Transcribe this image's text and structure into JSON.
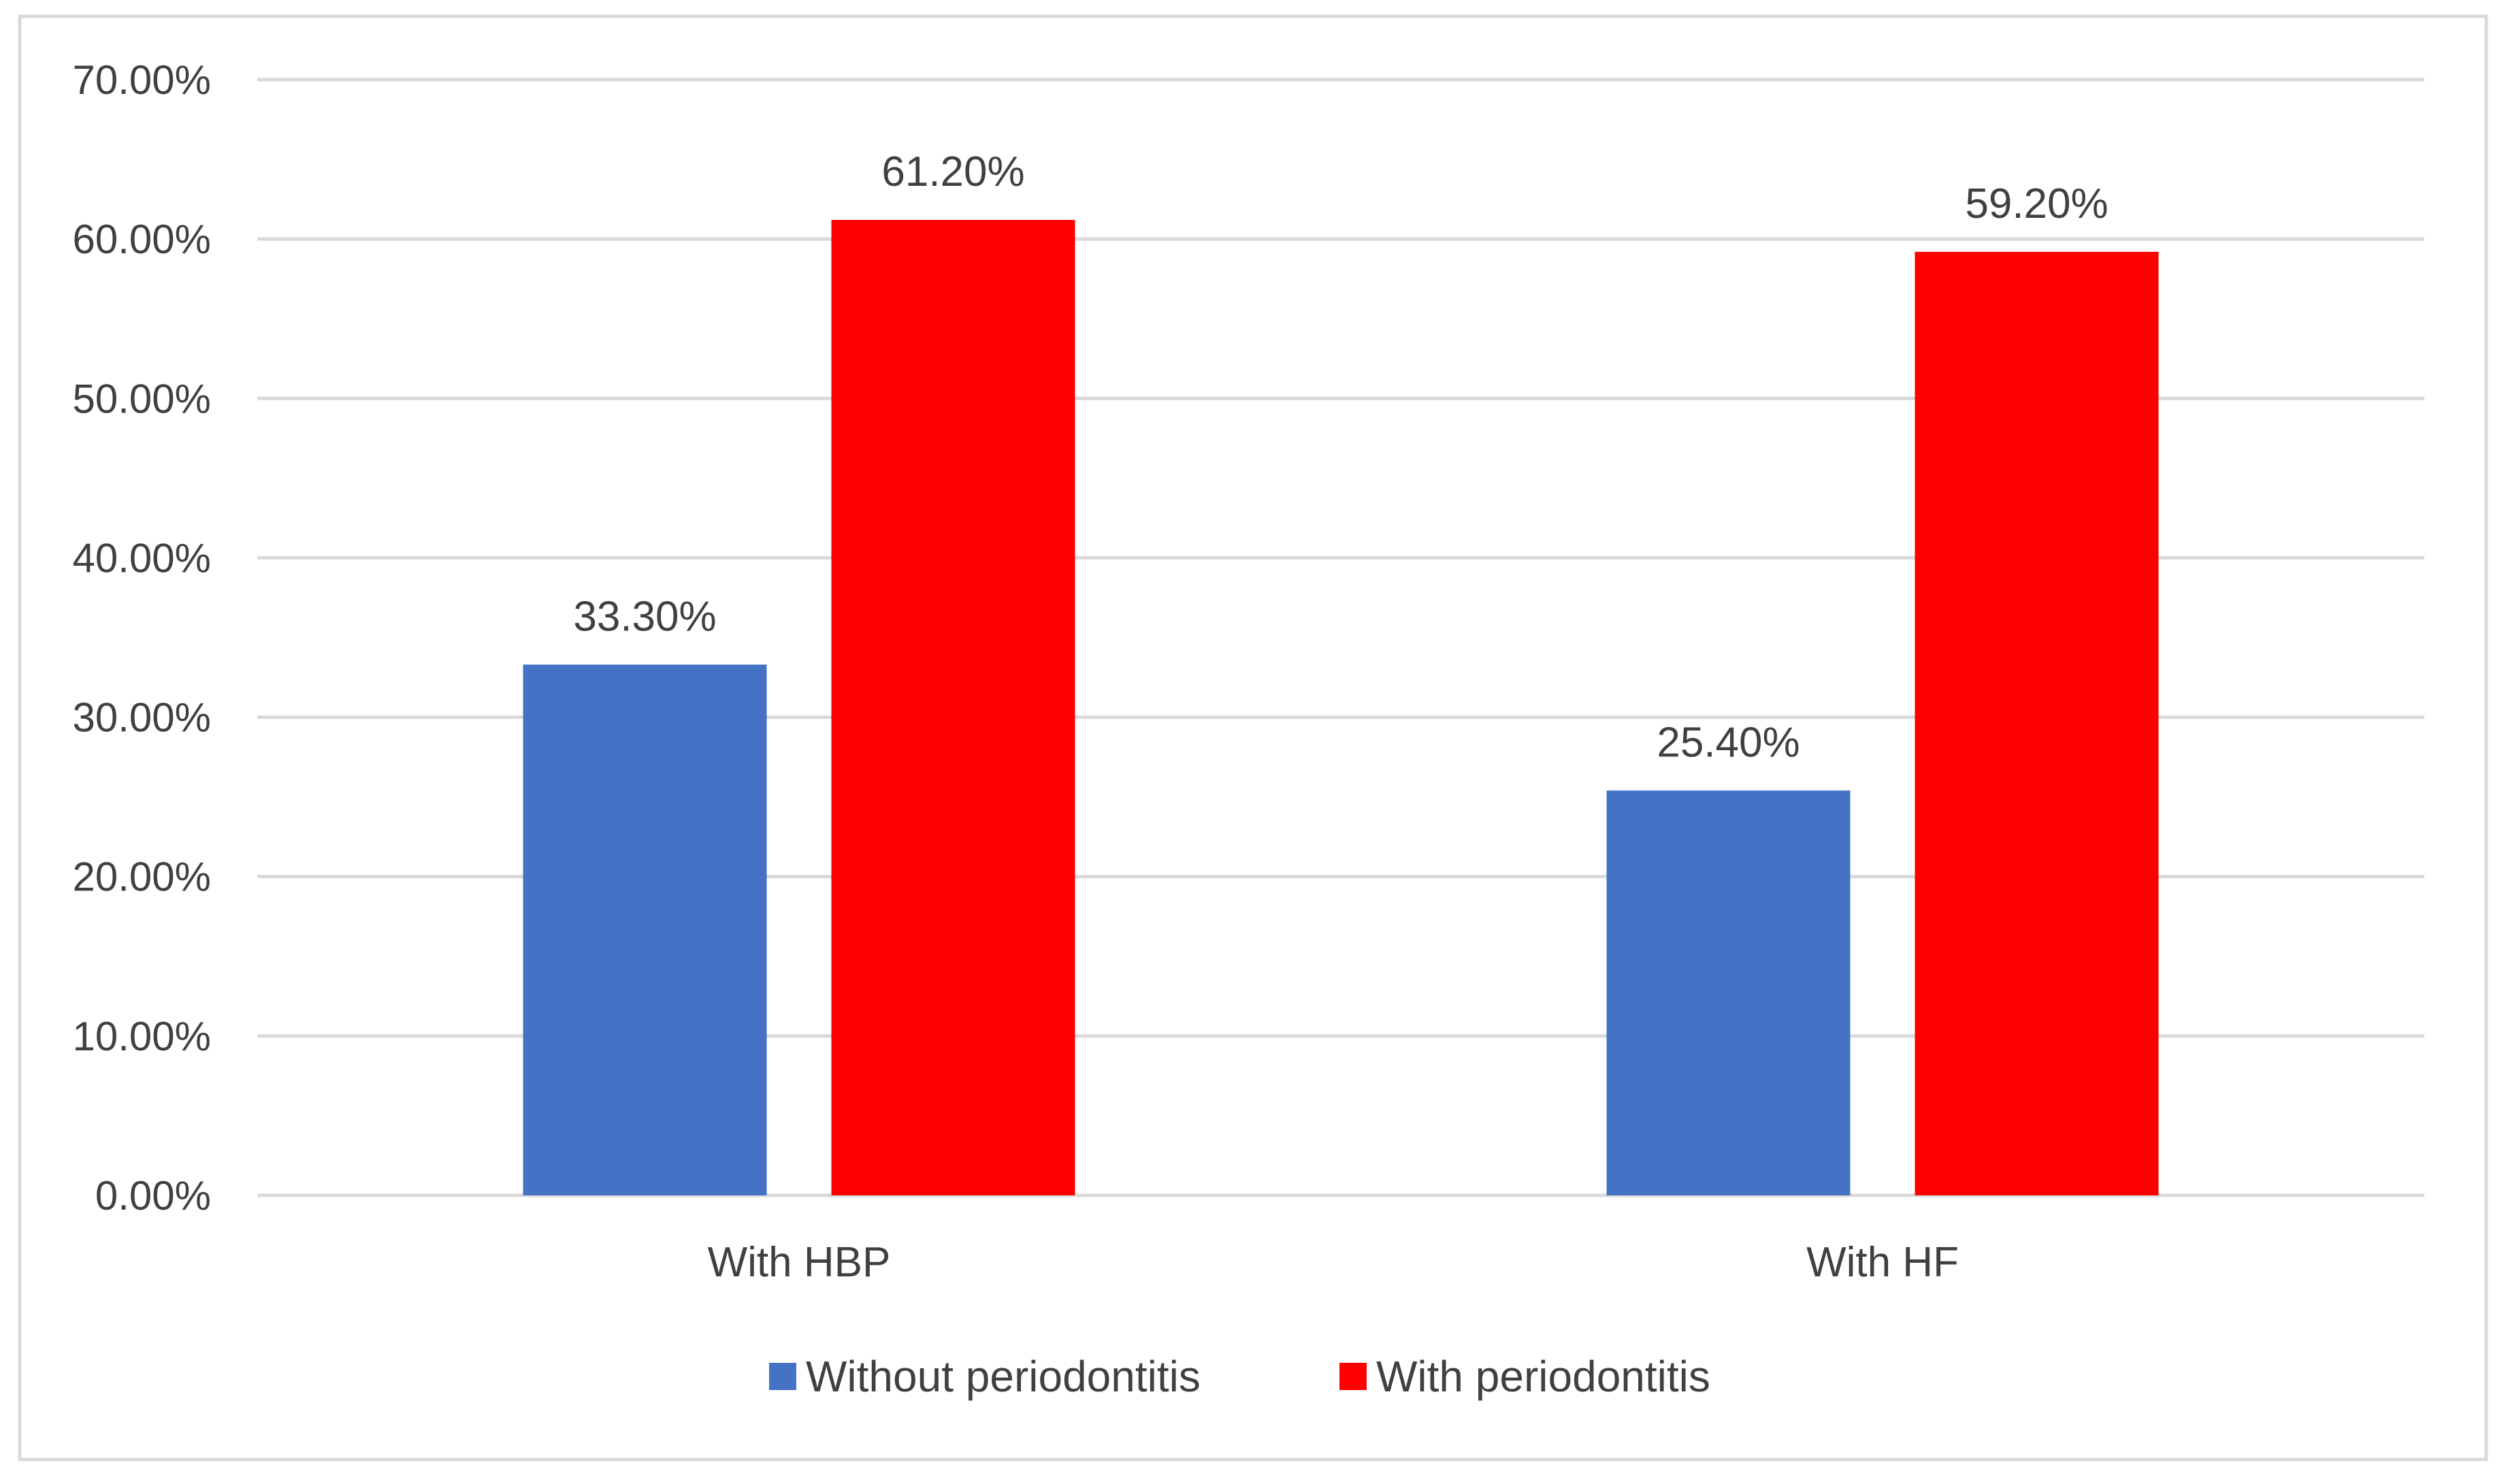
{
  "chart_data": {
    "type": "bar",
    "title": "",
    "xlabel": "",
    "ylabel": "",
    "categories": [
      "With HBP",
      "With HF"
    ],
    "series": [
      {
        "name": "Without periodontitis",
        "color": "#4472C4",
        "values": [
          33.3,
          25.4
        ],
        "labels": [
          "33.30%",
          "25.40%"
        ]
      },
      {
        "name": "With periodontitis",
        "color": "#FF0000",
        "values": [
          61.2,
          59.2
        ],
        "labels": [
          "61.20%",
          "59.20%"
        ]
      }
    ],
    "ylim": [
      0,
      70
    ],
    "yticks": [
      0,
      10,
      20,
      30,
      40,
      50,
      60,
      70
    ],
    "ytick_labels": [
      "0.00%",
      "10.00%",
      "20.00%",
      "30.00%",
      "40.00%",
      "50.00%",
      "60.00%",
      "70.00%"
    ],
    "grid": true,
    "legend_position": "bottom",
    "colors": {
      "gridline": "#D9D9D9",
      "frame": "#D9D9D9",
      "text": "#404040"
    }
  }
}
